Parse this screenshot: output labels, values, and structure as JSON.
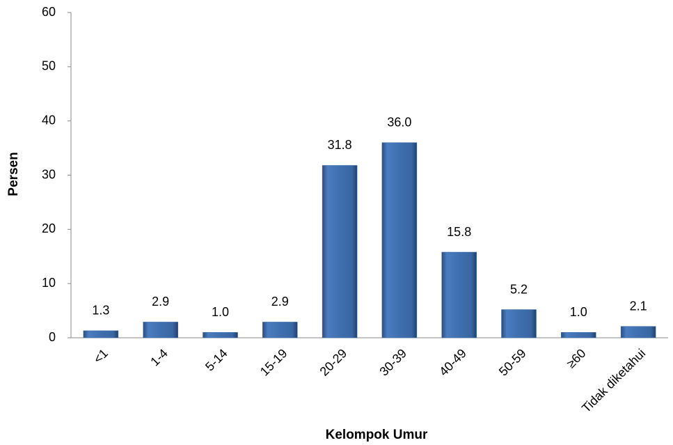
{
  "chart_data": {
    "type": "bar",
    "x_label": "Kelompok Umur",
    "y_label": "Persen",
    "categories": [
      "<1",
      "1-4",
      "5-14",
      "15-19",
      "20-29",
      "30-39",
      "40-49",
      "50-59",
      "≥60",
      "Tidak diketahui"
    ],
    "values": [
      1.3,
      2.9,
      1.0,
      2.9,
      31.8,
      36.0,
      15.8,
      5.2,
      1.0,
      2.1
    ],
    "value_labels": [
      "1.3",
      "2.9",
      "1.0",
      "2.9",
      "31.8",
      "36.0",
      "15.8",
      "5.2",
      "1.0",
      "2.1"
    ],
    "color": "#3f6fae",
    "ylim": [
      0,
      60
    ],
    "yticks": [
      0,
      10,
      20,
      30,
      40,
      50,
      60
    ],
    "grid": false
  }
}
